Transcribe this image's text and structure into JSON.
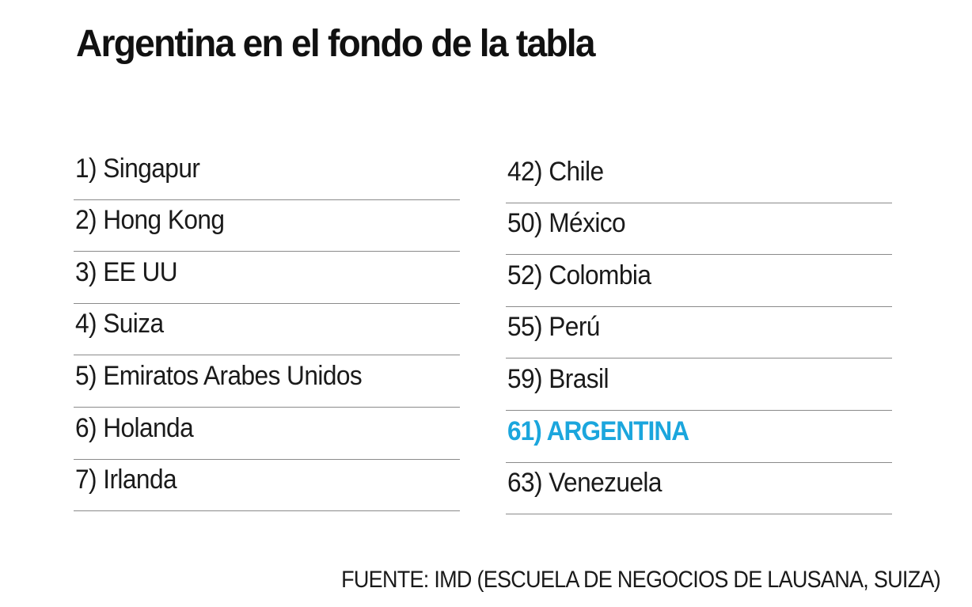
{
  "title": "Argentina en el fondo de la tabla",
  "left_column": [
    "1) Singapur",
    "2) Hong Kong",
    "3) EE UU",
    "4) Suiza",
    "5) Emiratos Arabes Unidos",
    "6) Holanda",
    "7) Irlanda"
  ],
  "right_column": [
    "42) Chile",
    "50) México",
    "52) Colombia",
    "55) Perú",
    "59) Brasil",
    "61) ARGENTINA",
    "63) Venezuela"
  ],
  "highlight_item": "61) ARGENTINA",
  "highlight_color": "#1ba6dd",
  "source": "FUENTE: IMD (ESCUELA DE NEGOCIOS DE LAUSANA, SUIZA)"
}
